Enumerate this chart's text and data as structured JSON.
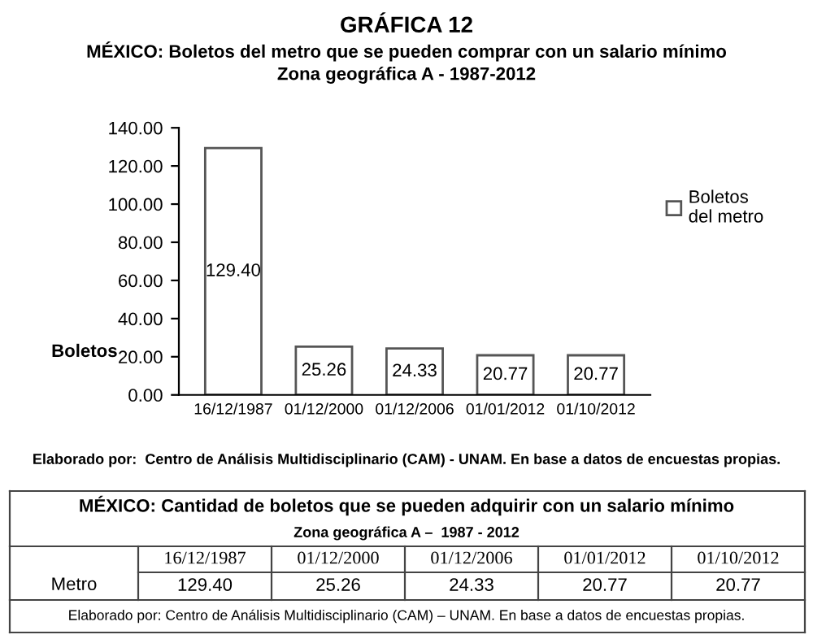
{
  "chart_data": {
    "type": "bar",
    "title": "GRÁFICA 12",
    "subtitle": "MÉXICO: Boletos del metro que se pueden comprar con un salario mínimo\nZona geográfica A - 1987-2012",
    "ylabel": "Boletos",
    "categories": [
      "16/12/1987",
      "01/12/2000",
      "01/12/2006",
      "01/01/2012",
      "01/10/2012"
    ],
    "series": [
      {
        "name": "Boletos\ndel metro",
        "color": "#ffffff",
        "values": [
          129.4,
          25.26,
          24.33,
          20.77,
          20.77
        ],
        "value_labels": [
          "129.40",
          "25.26",
          "24.33",
          "20.77",
          "20.77"
        ]
      }
    ],
    "ylim": [
      0,
      140
    ],
    "yticks": [
      {
        "value": 0,
        "label": "0.00"
      },
      {
        "value": 20,
        "label": "20.00"
      },
      {
        "value": 40,
        "label": "40.00"
      },
      {
        "value": 60,
        "label": "60.00"
      },
      {
        "value": 80,
        "label": "80.00"
      },
      {
        "value": 100,
        "label": "100.00"
      },
      {
        "value": 120,
        "label": "120.00"
      },
      {
        "value": 140,
        "label": "140.00"
      }
    ],
    "grid": false,
    "legend": "right",
    "annotations": [
      "Elaborado por:  Centro de Análisis Multidisciplinario (CAM) - UNAM. En base a datos de encuestas propias.",
      "MÉXICO: Cantidad de boletos que se pueden adquirir con un salario mínimo",
      "Zona geográfica A –  1987 - 2012",
      "Metro",
      "Elaborado por: Centro de Análisis Multidisciplinario (CAM) – UNAM. En base a datos de encuestas propias."
    ]
  }
}
